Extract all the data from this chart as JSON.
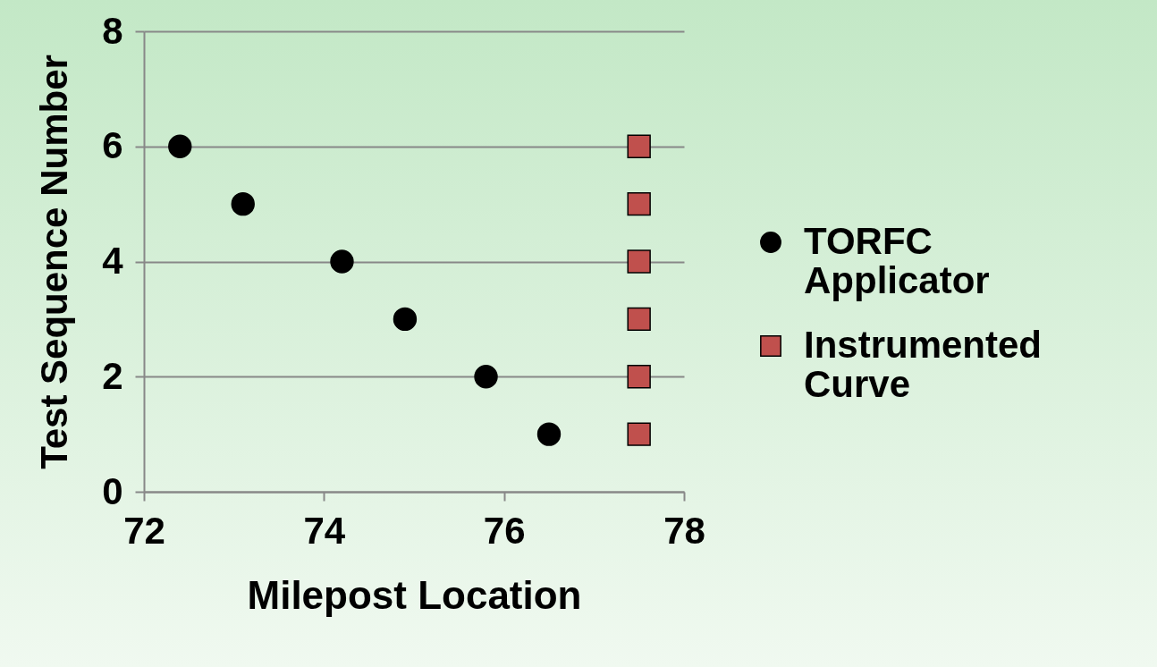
{
  "chart_data": {
    "type": "scatter",
    "xlabel": "Milepost Location",
    "ylabel": "Test Sequence Number",
    "xlim": [
      72,
      78
    ],
    "xticks": [
      72,
      74,
      76,
      78
    ],
    "ylim": [
      0,
      8
    ],
    "yticks": [
      0,
      2,
      4,
      6,
      8
    ],
    "grid": "y",
    "legend": "right",
    "series": [
      {
        "name": "TORFC Applicator",
        "color": "#000000",
        "marker": "circle",
        "x": [
          72.4,
          73.1,
          74.2,
          74.9,
          75.8,
          76.5
        ],
        "values": [
          6,
          5,
          4,
          3,
          2,
          1
        ]
      },
      {
        "name": "Instrumented Curve",
        "color": "#c0504d",
        "marker": "square",
        "x": [
          77.5,
          77.5,
          77.5,
          77.5,
          77.5,
          77.5
        ],
        "values": [
          6,
          5,
          4,
          3,
          2,
          1
        ]
      }
    ]
  }
}
